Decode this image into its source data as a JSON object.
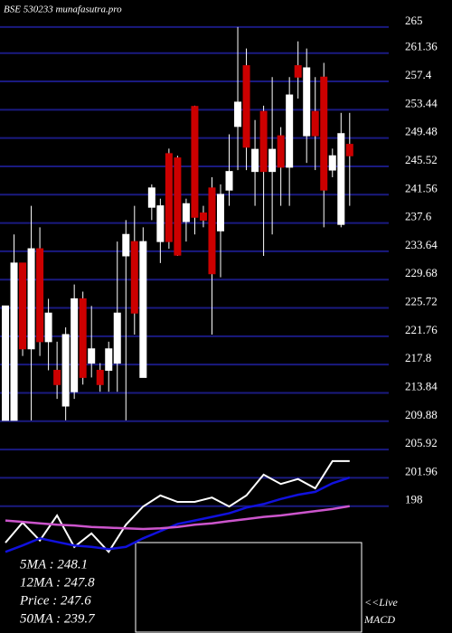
{
  "chart_data": {
    "type": "candlestick",
    "title": "BSE 530233 munafasutra.pro",
    "open": [
      210,
      210,
      232,
      220,
      234,
      221,
      217,
      212,
      214,
      227,
      218,
      217,
      217,
      218,
      233,
      235,
      216,
      239.8,
      235,
      247.3,
      246.7,
      237.8,
      253.9,
      239,
      242.5,
      236.5,
      242.2,
      251.1,
      259.6,
      244.8,
      253.2,
      244.8,
      249.8,
      245.4,
      259.6,
      249.8,
      253.2,
      258,
      245,
      237.4,
      248.6
    ],
    "high": [
      226,
      236,
      232,
      240,
      237,
      227,
      221,
      223,
      229,
      228,
      226,
      218,
      221,
      235,
      238,
      240,
      237,
      243,
      241,
      248,
      247,
      241,
      254,
      240,
      244,
      243,
      250,
      265,
      262,
      252,
      254,
      258,
      251,
      258,
      263,
      262,
      258,
      260,
      248,
      253,
      253
    ],
    "low": [
      210,
      210,
      219,
      210,
      219,
      217,
      213,
      210,
      213,
      215,
      216,
      214,
      214,
      214,
      210,
      222,
      216,
      238,
      232,
      234,
      233,
      235,
      236,
      237,
      222,
      230,
      240,
      245,
      245,
      240,
      233,
      236,
      240,
      240,
      255,
      246,
      245,
      237,
      244,
      237,
      240
    ],
    "close": [
      226,
      232,
      220,
      234,
      221,
      225,
      215,
      222,
      227,
      216,
      220,
      215,
      220,
      225,
      236,
      225,
      235,
      242.5,
      240,
      235,
      233.1,
      240.3,
      238.4,
      238,
      230.5,
      241.6,
      244.8,
      254.5,
      248.2,
      247.9,
      244.8,
      247.9,
      245.4,
      255.5,
      258,
      259.3,
      249.8,
      242.2,
      247,
      250.1,
      247
    ],
    "up_color": "#ffffff",
    "down_color": "#cc0000",
    "grid_color": "#1a1a80",
    "ylim": [
      190,
      266
    ],
    "yticks": [
      265,
      261.36,
      257.4,
      253.44,
      249.48,
      245.52,
      241.56,
      237.6,
      233.64,
      229.68,
      225.72,
      221.76,
      217.8,
      213.84,
      209.88,
      205.92,
      201.96,
      198
    ],
    "lines": [
      {
        "color": "#ffffff",
        "values": [
          192.9,
          195.7,
          193.2,
          196.7,
          192.3,
          194.2,
          191.6,
          195.4,
          197.96,
          199.5,
          198.6,
          198.6,
          199.2,
          197.96,
          199.5,
          202.4,
          201.1,
          201.8,
          200.5,
          204.3,
          204.3
        ]
      },
      {
        "color": "#1111dd",
        "values": [
          191.6,
          192.5,
          193.5,
          193.0,
          192.5,
          192.3,
          192.0,
          192.3,
          193.5,
          194.5,
          195.5,
          196.0,
          196.5,
          197.0,
          197.8,
          198.3,
          199.0,
          199.6,
          200.0,
          201.2,
          202.0
        ]
      },
      {
        "color": "#cc55cc",
        "values": [
          196.0,
          195.8,
          195.6,
          195.4,
          195.3,
          195.1,
          195.0,
          194.9,
          194.8,
          194.9,
          195.1,
          195.4,
          195.6,
          195.9,
          196.2,
          196.5,
          196.7,
          197.0,
          197.3,
          197.6,
          198.0
        ]
      }
    ],
    "ma_labels": [
      "5MA : 248.1",
      "12MA : 247.8",
      "Price  : 247.6",
      "50MA : 239.7"
    ],
    "live_label": "<<Live",
    "macd_label": "MACD"
  }
}
